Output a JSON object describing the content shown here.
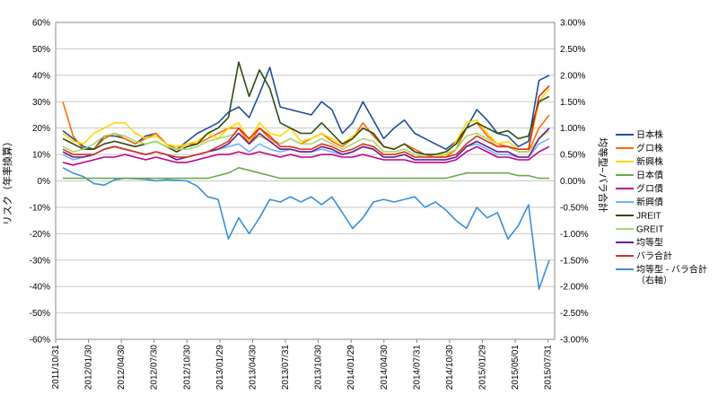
{
  "chart_data": {
    "type": "line",
    "title": "",
    "ylabel": "リスク（年率換算）",
    "y2label": "均等型−バラ合計",
    "ylim": [
      -60,
      60
    ],
    "y2lim": [
      -3.0,
      3.0
    ],
    "y_ticks": [
      "60%",
      "50%",
      "40%",
      "30%",
      "20%",
      "10%",
      "0%",
      "-10%",
      "-20%",
      "-30%",
      "-40%",
      "-50%",
      "-60%"
    ],
    "y2_ticks": [
      "3.00%",
      "2.50%",
      "2.00%",
      "1.50%",
      "1.00%",
      "0.50%",
      "0.00%",
      "-0.50%",
      "-1.00%",
      "-1.50%",
      "-2.00%",
      "-2.50%",
      "-3.00%"
    ],
    "x_ticks": [
      "2011/10/31",
      "2012/01/30",
      "2012/04/30",
      "2012/07/30",
      "2012/10/30",
      "2013/01/29",
      "2013/04/30",
      "2013/07/31",
      "2013/10/30",
      "2014/01/29",
      "2014/04/30",
      "2014/07/31",
      "2014/10/30",
      "2015/01/29",
      "2015/05/01",
      "2015/07/31"
    ],
    "x": [
      0,
      1,
      2,
      3,
      4,
      5,
      6,
      7,
      8,
      9,
      10,
      11,
      12,
      13,
      14,
      15,
      16,
      17,
      18,
      19,
      20,
      21,
      22,
      23,
      24,
      25,
      26,
      27,
      28,
      29,
      30,
      31,
      32,
      33,
      34,
      35,
      36,
      37,
      38,
      39,
      40,
      41,
      42,
      43,
      44,
      45,
      46,
      47
    ],
    "series": [
      {
        "name": "日本株",
        "color": "#1f4e9c",
        "axis": "left",
        "values": [
          19,
          16,
          13,
          12,
          17,
          17,
          16,
          14,
          17,
          18,
          14,
          12,
          15,
          18,
          20,
          22,
          26,
          28,
          24,
          33,
          43,
          28,
          27,
          26,
          25,
          30,
          27,
          18,
          22,
          30,
          23,
          16,
          20,
          23,
          18,
          16,
          14,
          12,
          15,
          20,
          27,
          23,
          18,
          17,
          13,
          15,
          38,
          40
        ]
      },
      {
        "name": "グロ株",
        "color": "#ff6a00",
        "axis": "left",
        "values": [
          30,
          17,
          12,
          12,
          16,
          18,
          16,
          14,
          16,
          18,
          14,
          12,
          14,
          14,
          16,
          18,
          20,
          20,
          14,
          20,
          16,
          14,
          16,
          14,
          16,
          18,
          15,
          13,
          16,
          22,
          17,
          13,
          12,
          14,
          12,
          10,
          9,
          9,
          12,
          20,
          22,
          17,
          14,
          13,
          11,
          11,
          20,
          25
        ]
      },
      {
        "name": "新興株",
        "color": "#ffd700",
        "axis": "left",
        "values": [
          18,
          15,
          14,
          18,
          20,
          22,
          22,
          18,
          16,
          17,
          14,
          13,
          14,
          15,
          18,
          16,
          20,
          22,
          15,
          22,
          18,
          17,
          20,
          15,
          16,
          18,
          16,
          14,
          17,
          20,
          18,
          13,
          12,
          14,
          11,
          10,
          10,
          10,
          15,
          22,
          23,
          18,
          14,
          15,
          12,
          12,
          30,
          35
        ]
      },
      {
        "name": "日本債",
        "color": "#6aa84f",
        "axis": "left",
        "values": [
          1,
          1,
          1,
          1,
          1,
          1,
          1,
          1,
          1,
          1,
          1,
          1,
          1,
          1,
          1,
          2,
          3,
          5,
          4,
          3,
          2,
          1,
          1,
          1,
          1,
          1,
          1,
          1,
          1,
          1,
          1,
          1,
          1,
          1,
          1,
          1,
          1,
          1,
          2,
          3,
          3,
          3,
          3,
          3,
          2,
          2,
          1,
          1
        ]
      },
      {
        "name": "グロ債",
        "color": "#c0008a",
        "axis": "left",
        "values": [
          7,
          6,
          7,
          8,
          9,
          9,
          10,
          9,
          8,
          9,
          8,
          7,
          7,
          8,
          9,
          10,
          10,
          11,
          10,
          11,
          10,
          9,
          10,
          9,
          9,
          10,
          10,
          9,
          9,
          10,
          9,
          8,
          8,
          8,
          7,
          7,
          7,
          7,
          8,
          11,
          13,
          11,
          9,
          9,
          8,
          8,
          11,
          13
        ]
      },
      {
        "name": "新興債",
        "color": "#6fb3ff",
        "axis": "left",
        "values": [
          10,
          8,
          9,
          10,
          12,
          13,
          12,
          11,
          10,
          11,
          10,
          9,
          9,
          10,
          11,
          12,
          13,
          14,
          11,
          14,
          12,
          11,
          12,
          11,
          11,
          12,
          11,
          10,
          11,
          13,
          12,
          9,
          9,
          10,
          8,
          8,
          8,
          8,
          9,
          13,
          14,
          12,
          10,
          10,
          9,
          9,
          14,
          16
        ]
      },
      {
        "name": "JREIT",
        "color": "#2d4a10",
        "axis": "left",
        "values": [
          16,
          14,
          12,
          12,
          14,
          15,
          14,
          13,
          14,
          15,
          13,
          11,
          13,
          14,
          18,
          20,
          24,
          45,
          32,
          42,
          35,
          22,
          20,
          18,
          18,
          22,
          18,
          14,
          16,
          20,
          18,
          13,
          12,
          14,
          11,
          10,
          10,
          11,
          14,
          20,
          22,
          20,
          18,
          19,
          16,
          17,
          30,
          32
        ]
      },
      {
        "name": "GREIT",
        "color": "#a6d86e",
        "axis": "left",
        "values": [
          13,
          11,
          12,
          14,
          17,
          18,
          17,
          15,
          14,
          15,
          13,
          12,
          12,
          13,
          15,
          16,
          17,
          18,
          14,
          17,
          15,
          14,
          16,
          14,
          14,
          16,
          14,
          12,
          14,
          16,
          15,
          11,
          11,
          12,
          10,
          9,
          9,
          10,
          12,
          17,
          18,
          16,
          13,
          13,
          11,
          11,
          16,
          19
        ]
      },
      {
        "name": "均等型",
        "color": "#6a1a8a",
        "axis": "left",
        "values": [
          11,
          9,
          9,
          10,
          12,
          13,
          12,
          11,
          10,
          11,
          10,
          8,
          9,
          10,
          11,
          12,
          14,
          18,
          14,
          18,
          15,
          12,
          12,
          11,
          11,
          13,
          12,
          10,
          11,
          13,
          12,
          9,
          9,
          10,
          8,
          8,
          8,
          8,
          9,
          13,
          15,
          13,
          11,
          11,
          9,
          9,
          16,
          20
        ]
      },
      {
        "name": "バラ合計",
        "color": "#d9301c",
        "axis": "left",
        "values": [
          12,
          10,
          10,
          10,
          12,
          13,
          12,
          11,
          10,
          11,
          10,
          9,
          9,
          10,
          11,
          13,
          15,
          20,
          16,
          20,
          17,
          13,
          13,
          12,
          12,
          14,
          13,
          11,
          12,
          14,
          13,
          10,
          10,
          11,
          9,
          9,
          9,
          9,
          10,
          14,
          17,
          15,
          13,
          13,
          12,
          12,
          32,
          36
        ]
      },
      {
        "name": "均等型 - バラ合計\n（右軸）",
        "color": "#3a8fd6",
        "axis": "right",
        "values": [
          0.25,
          0.15,
          0.08,
          -0.05,
          -0.08,
          0.02,
          0.05,
          0.04,
          0.03,
          0.0,
          0.02,
          0.01,
          0.0,
          -0.1,
          -0.3,
          -0.35,
          -1.1,
          -0.7,
          -1.0,
          -0.7,
          -0.35,
          -0.4,
          -0.3,
          -0.4,
          -0.3,
          -0.45,
          -0.3,
          -0.6,
          -0.9,
          -0.7,
          -0.4,
          -0.35,
          -0.4,
          -0.35,
          -0.3,
          -0.5,
          -0.4,
          -0.55,
          -0.75,
          -0.9,
          -0.5,
          -0.7,
          -0.6,
          -1.1,
          -0.85,
          -0.45,
          -2.05,
          -1.5
        ]
      }
    ]
  }
}
